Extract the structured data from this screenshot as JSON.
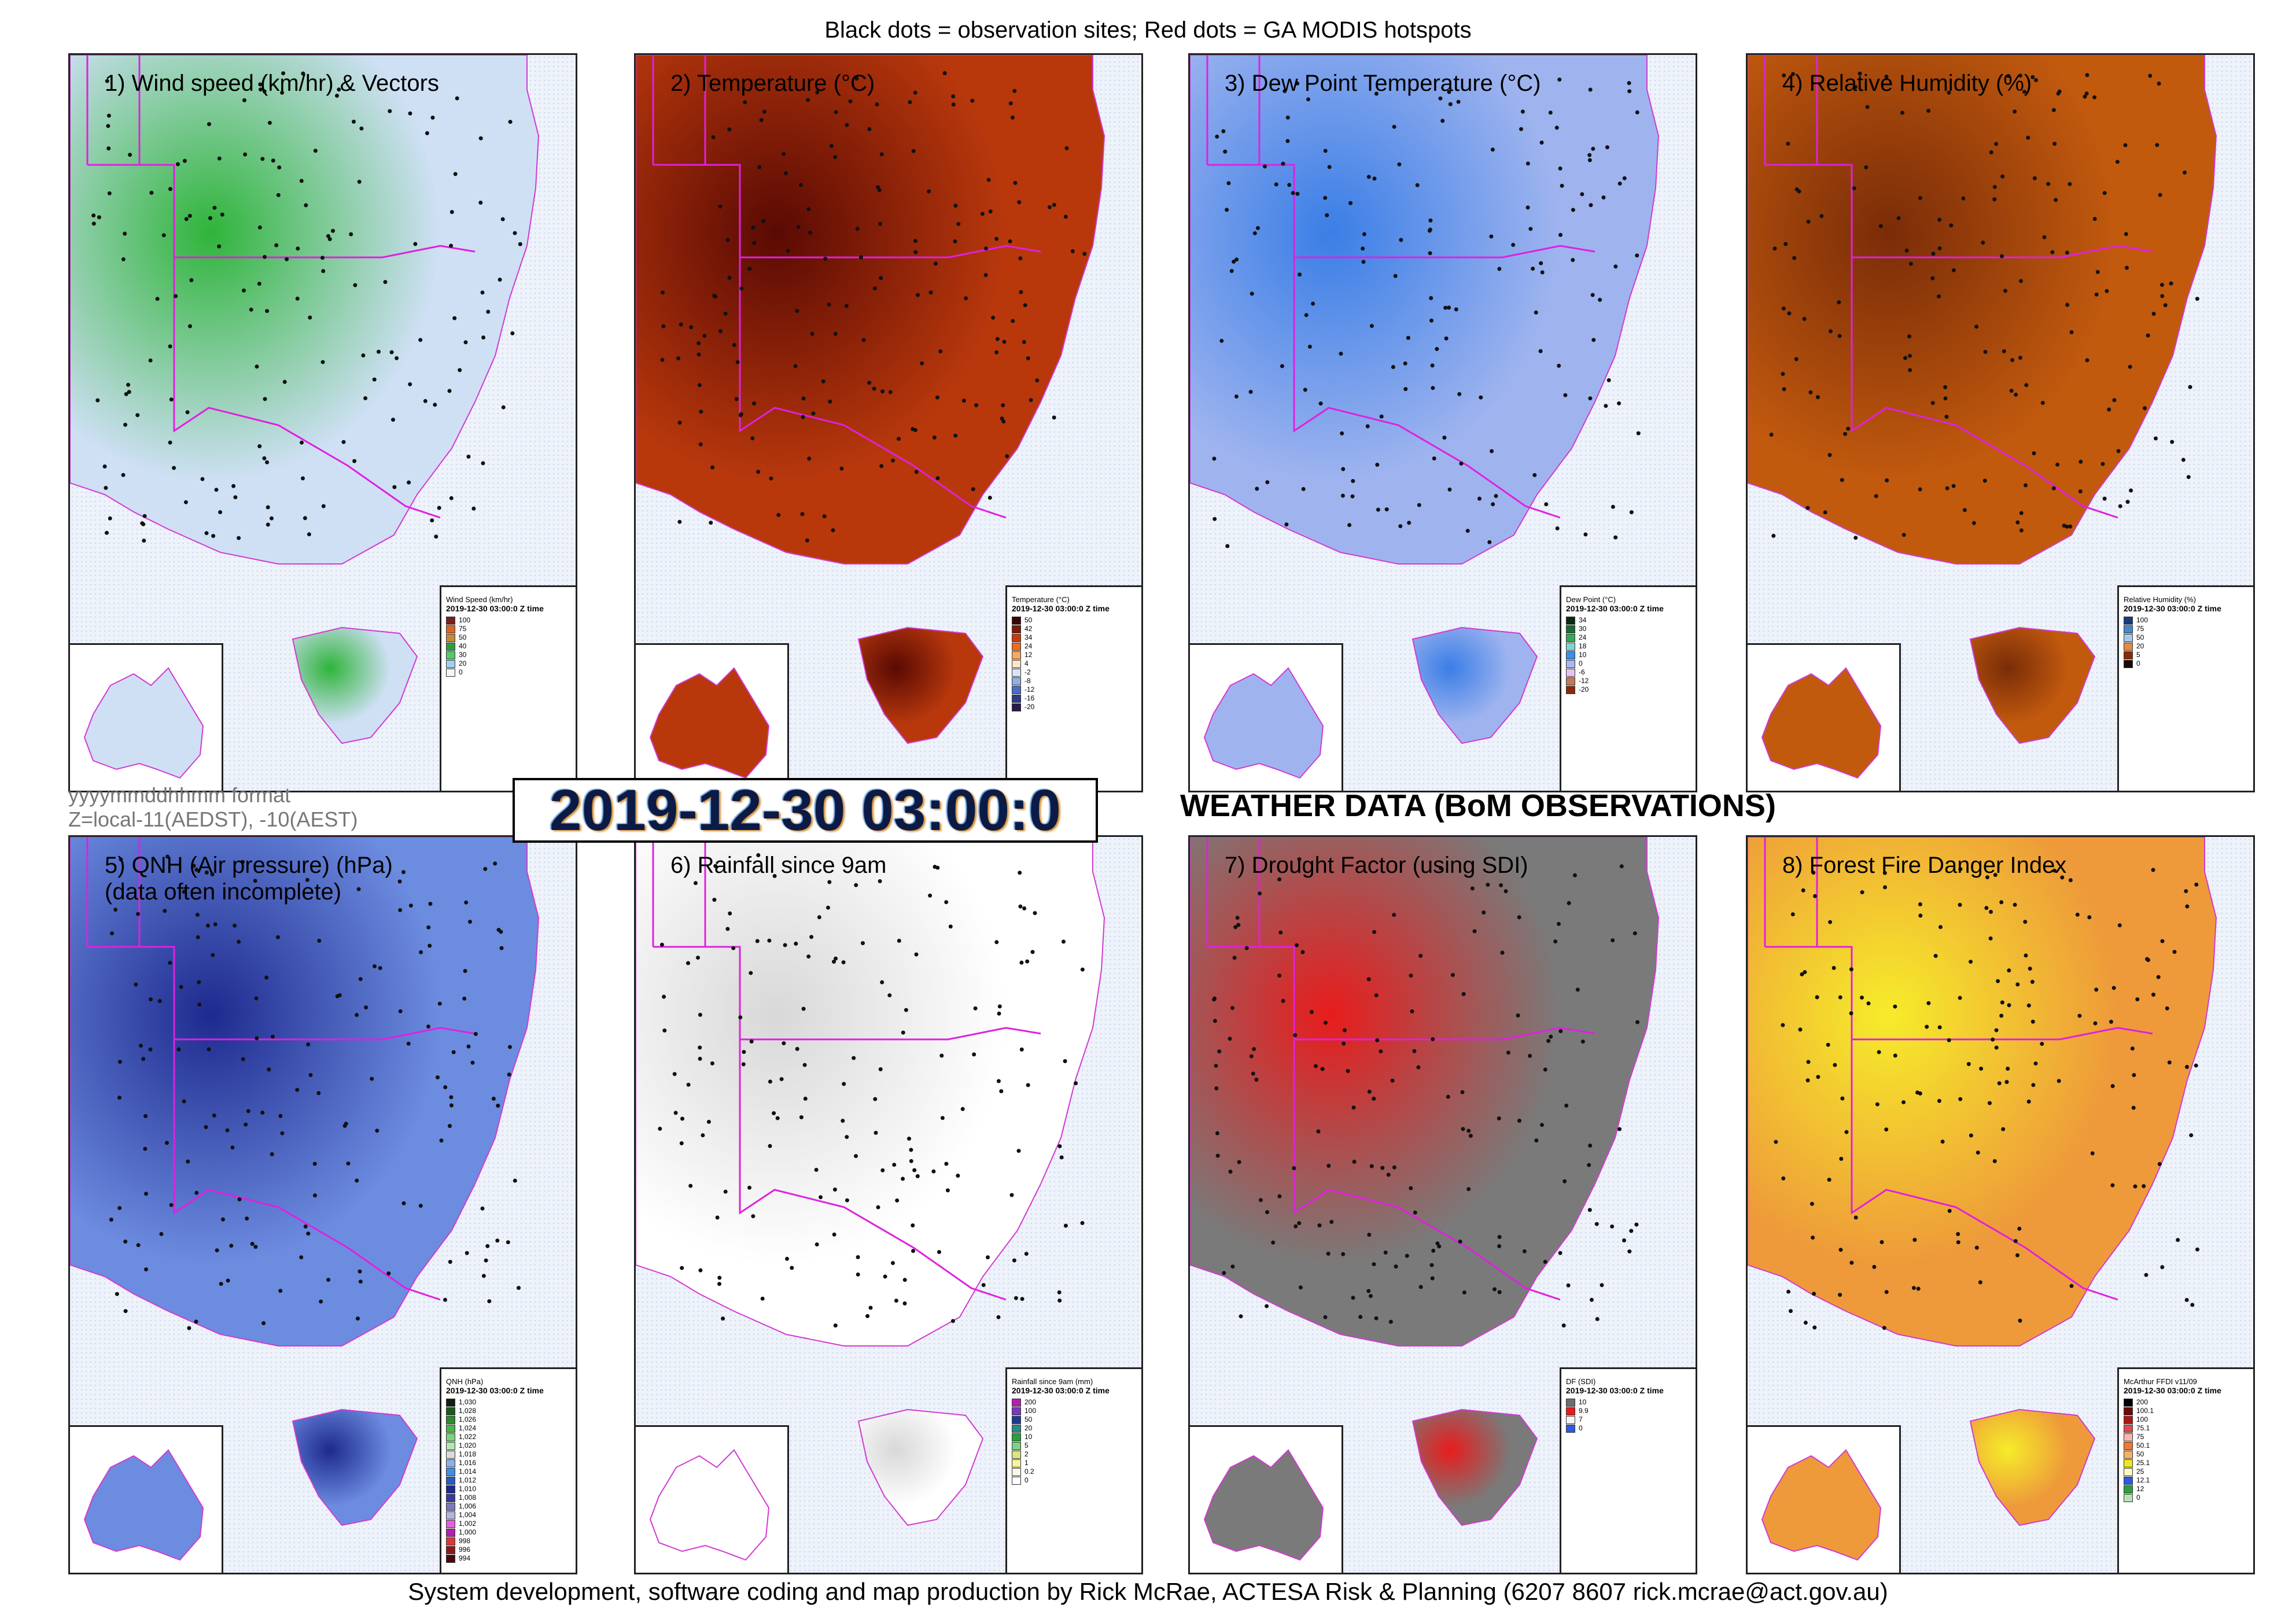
{
  "header": {
    "caption": "Black dots = observation sites; Red dots = GA MODIS hotspots"
  },
  "footer": {
    "caption": "System development, software coding and map production by Rick McRae, ACTESA Risk & Planning (6207 8607 rick.mcrae@act.gov.au)"
  },
  "timestamp": {
    "value": "2019-12-30 03:00:0",
    "format_note": "yyyymmddhhmm format",
    "zone_note": "Z=local-11(AEDST), -10(AEST)"
  },
  "section_title": "WEATHER DATA (BoM OBSERVATIONS)",
  "panels": [
    {
      "title": "1) Wind speed (km/hr) & Vectors",
      "base_color": "#cfe0f5",
      "accent_color": "#2fb43a",
      "legend": {
        "title": "Wind Speed (km/hr)",
        "subtitle": "2019-12-30 03:00:0 Z time",
        "items": [
          {
            "label": "100",
            "color": "#7a1f1f"
          },
          {
            "label": "75",
            "color": "#d8672a"
          },
          {
            "label": "50",
            "color": "#c48a3c"
          },
          {
            "label": "40",
            "color": "#2e9e3c"
          },
          {
            "label": "30",
            "color": "#58c96a"
          },
          {
            "label": "20",
            "color": "#9fd0f0"
          },
          {
            "label": "0",
            "color": "#f2f5fb"
          }
        ]
      }
    },
    {
      "title": "2) Temperature (°C)",
      "base_color": "#b8380c",
      "accent_color": "#5a0a04",
      "legend": {
        "title": "Temperature (°C)",
        "subtitle": "2019-12-30 03:00:0 Z time",
        "items": [
          {
            "label": "50",
            "color": "#3b0505"
          },
          {
            "label": "42",
            "color": "#7a1a08"
          },
          {
            "label": "34",
            "color": "#c8390f"
          },
          {
            "label": "24",
            "color": "#f06a20"
          },
          {
            "label": "12",
            "color": "#f9a860"
          },
          {
            "label": "4",
            "color": "#fde6c6"
          },
          {
            "label": "-2",
            "color": "#d7e4f5"
          },
          {
            "label": "-8",
            "color": "#8fb0e0"
          },
          {
            "label": "-12",
            "color": "#4a6cc4"
          },
          {
            "label": "-16",
            "color": "#2a3b8a"
          },
          {
            "label": "-20",
            "color": "#2a1a4a"
          }
        ]
      }
    },
    {
      "title": "3) Dew Point Temperature (°C)",
      "base_color": "#9fb4ef",
      "accent_color": "#3a7ee6",
      "legend": {
        "title": "Dew Point (°C)",
        "subtitle": "2019-12-30 03:00:0 Z time",
        "items": [
          {
            "label": "34",
            "color": "#0a2a16"
          },
          {
            "label": "30",
            "color": "#1c6b34"
          },
          {
            "label": "24",
            "color": "#36a856"
          },
          {
            "label": "18",
            "color": "#7fd6cf"
          },
          {
            "label": "10",
            "color": "#3f8fe4"
          },
          {
            "label": "0",
            "color": "#a9b8ef"
          },
          {
            "label": "-6",
            "color": "#e6c4ef"
          },
          {
            "label": "-12",
            "color": "#c07a5c"
          },
          {
            "label": "-20",
            "color": "#8a2a0a"
          }
        ]
      }
    },
    {
      "title": "4) Relative Humidity (%)",
      "base_color": "#c25a0e",
      "accent_color": "#7a2c08",
      "legend": {
        "title": "Relative Humidity (%)",
        "subtitle": "2019-12-30 03:00:0 Z time",
        "items": [
          {
            "label": "100",
            "color": "#1a3b7a"
          },
          {
            "label": "75",
            "color": "#4a86c5"
          },
          {
            "label": "50",
            "color": "#a9c8e8"
          },
          {
            "label": "20",
            "color": "#e88a3a"
          },
          {
            "label": "5",
            "color": "#8a2a08"
          },
          {
            "label": "0",
            "color": "#1a0a02"
          }
        ]
      }
    },
    {
      "title": "5) QNH (Air pressure) (hPa)\n(data often incomplete)",
      "base_color": "#6c8ce0",
      "accent_color": "#1e2a8e",
      "legend": {
        "title": "QNH (hPa)",
        "subtitle": "2019-12-30 03:00:0 Z time",
        "items": [
          {
            "label": "1,030",
            "color": "#102010"
          },
          {
            "label": "1,028",
            "color": "#1e5a1e"
          },
          {
            "label": "1,026",
            "color": "#2e8a2e"
          },
          {
            "label": "1,024",
            "color": "#4ab64a"
          },
          {
            "label": "1,022",
            "color": "#7fd07f"
          },
          {
            "label": "1,020",
            "color": "#b5e5b5"
          },
          {
            "label": "1,018",
            "color": "#d8dcd8"
          },
          {
            "label": "1,016",
            "color": "#8fb0e0"
          },
          {
            "label": "1,014",
            "color": "#3f8fe4"
          },
          {
            "label": "1,012",
            "color": "#2a5ac4"
          },
          {
            "label": "1,010",
            "color": "#1e2a8e"
          },
          {
            "label": "1,008",
            "color": "#3a3a9a"
          },
          {
            "label": "1,006",
            "color": "#7a7ab8"
          },
          {
            "label": "1,004",
            "color": "#b5b5d8"
          },
          {
            "label": "1,002",
            "color": "#e060e0"
          },
          {
            "label": "1,000",
            "color": "#b020b0"
          },
          {
            "label": "998",
            "color": "#d83a3a"
          },
          {
            "label": "996",
            "color": "#8a1a1a"
          },
          {
            "label": "994",
            "color": "#4a0a0a"
          }
        ]
      }
    },
    {
      "title": "6) Rainfall since 9am",
      "base_color": "#ffffff",
      "accent_color": "#d8d8d8",
      "legend": {
        "title": "Rainfall since 9am (mm)",
        "subtitle": "2019-12-30 03:00:0 Z time",
        "items": [
          {
            "label": "200",
            "color": "#b020b0"
          },
          {
            "label": "100",
            "color": "#7a3ab8"
          },
          {
            "label": "50",
            "color": "#1e3a8e"
          },
          {
            "label": "20",
            "color": "#2a8a8a"
          },
          {
            "label": "10",
            "color": "#2e9e3c"
          },
          {
            "label": "5",
            "color": "#7fd07f"
          },
          {
            "label": "2",
            "color": "#d8e87a"
          },
          {
            "label": "1",
            "color": "#f5f5a0"
          },
          {
            "label": "0.2",
            "color": "#f8f8e8"
          },
          {
            "label": "0",
            "color": "#ffffff"
          }
        ]
      }
    },
    {
      "title": "7) Drought Factor (using SDI)",
      "base_color": "#7a7a7a",
      "accent_color": "#e81c1c",
      "legend": {
        "title": "DF (SDI)",
        "subtitle": "2019-12-30 03:00:0 Z time",
        "items": [
          {
            "label": "10",
            "color": "#6e6e6e"
          },
          {
            "label": "9.9",
            "color": "#e81c1c"
          },
          {
            "label": "7",
            "color": "#f5f5f5"
          },
          {
            "label": "0",
            "color": "#2a5ae6"
          }
        ]
      }
    },
    {
      "title": "8) Forest Fire Danger Index",
      "base_color": "#ee9a3a",
      "accent_color": "#f6ec2a",
      "legend": {
        "title": "McArthur FFDI v11/09",
        "subtitle": "2019-12-30 03:00:0 Z time",
        "items": [
          {
            "label": "200",
            "color": "#000000"
          },
          {
            "label": "100.1",
            "color": "#6a0a0a"
          },
          {
            "label": "100",
            "color": "#b01414"
          },
          {
            "label": "75.1",
            "color": "#e24a4a"
          },
          {
            "label": "75",
            "color": "#f5b5b5"
          },
          {
            "label": "50.1",
            "color": "#f07a2a"
          },
          {
            "label": "50",
            "color": "#f6b060"
          },
          {
            "label": "25.1",
            "color": "#f0e620"
          },
          {
            "label": "25",
            "color": "#fafac0"
          },
          {
            "label": "12.1",
            "color": "#2a5ae6"
          },
          {
            "label": "12",
            "color": "#2e9e3c"
          },
          {
            "label": "0",
            "color": "#b5e5b5"
          }
        ]
      }
    }
  ]
}
